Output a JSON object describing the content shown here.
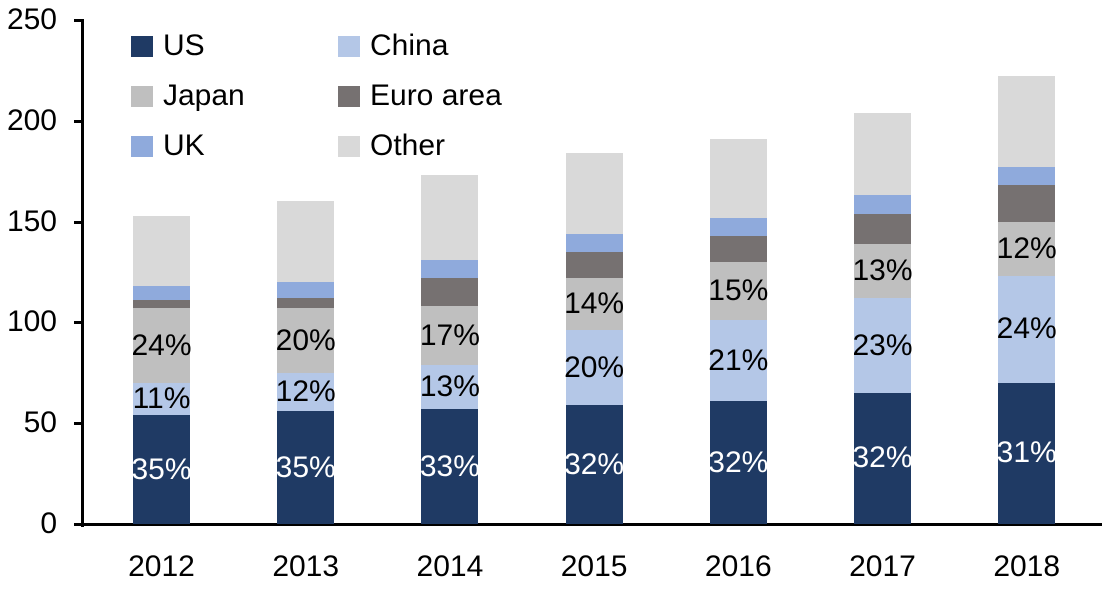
{
  "chart_data": {
    "type": "bar",
    "variant": "stacked",
    "title": "",
    "xlabel": "",
    "ylabel": "",
    "categories": [
      "2012",
      "2013",
      "2014",
      "2015",
      "2016",
      "2017",
      "2018"
    ],
    "ylim": [
      0,
      250
    ],
    "yticks": [
      0,
      50,
      100,
      150,
      200,
      250
    ],
    "grid": false,
    "legend_position": "top-left, two columns",
    "axis_color": "#000000",
    "background_color": "#ffffff",
    "label_colors": {
      "on_dark": "#ffffff",
      "on_light": "#000000"
    },
    "series": [
      {
        "name": "US",
        "color": "#1f3a64",
        "values": [
          54,
          56,
          57,
          59,
          61,
          65,
          70
        ],
        "labels": [
          "35%",
          "35%",
          "33%",
          "32%",
          "32%",
          "32%",
          "31%"
        ],
        "label_color": "#ffffff"
      },
      {
        "name": "China",
        "color": "#b4c7e7",
        "values": [
          16,
          19,
          22,
          37,
          40,
          47,
          53
        ],
        "labels": [
          "11%",
          "12%",
          "13%",
          "20%",
          "21%",
          "23%",
          "24%"
        ],
        "label_color": "#000000"
      },
      {
        "name": "Japan",
        "color": "#bfbfbf",
        "values": [
          37,
          32,
          29,
          26,
          29,
          27,
          27
        ],
        "labels": [
          "24%",
          "20%",
          "17%",
          "14%",
          "15%",
          "13%",
          "12%"
        ],
        "label_color": "#000000"
      },
      {
        "name": "Euro area",
        "color": "#767171",
        "values": [
          4,
          5,
          14,
          13,
          13,
          15,
          18
        ],
        "labels": null,
        "label_color": null
      },
      {
        "name": "UK",
        "color": "#8faadc",
        "values": [
          7,
          8,
          9,
          9,
          9,
          9,
          9
        ],
        "labels": null,
        "label_color": null
      },
      {
        "name": "Other",
        "color": "#d9d9d9",
        "values": [
          35,
          40,
          42,
          40,
          39,
          41,
          45
        ],
        "labels": null,
        "label_color": null
      }
    ],
    "totals": [
      153,
      160,
      173,
      184,
      191,
      204,
      222
    ],
    "legend_entries": [
      "US",
      "China",
      "Japan",
      "Euro area",
      "UK",
      "Other"
    ]
  }
}
